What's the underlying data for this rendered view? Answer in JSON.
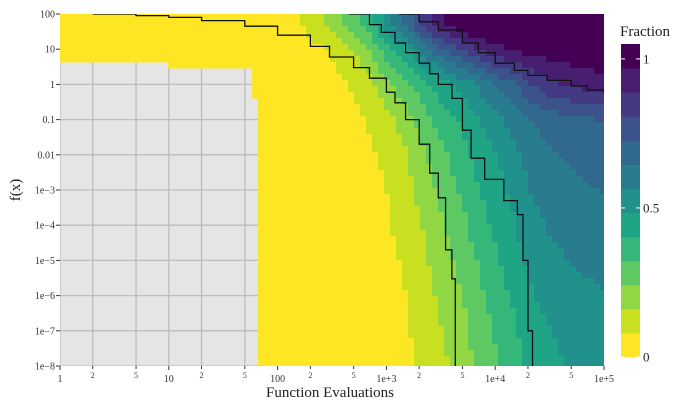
{
  "chart_data": {
    "type": "heatmap",
    "title": "",
    "xlabel": "Function Evaluations",
    "ylabel": "f(x)",
    "x_scale": "log10",
    "y_scale": "log10",
    "xlim": [
      1,
      100000
    ],
    "ylim": [
      1e-08,
      100
    ],
    "x_major_ticks": [
      {
        "value": 1,
        "label": "1"
      },
      {
        "value": 10,
        "label": "10"
      },
      {
        "value": 100,
        "label": "100"
      },
      {
        "value": 1000,
        "label": "1e+3"
      },
      {
        "value": 10000,
        "label": "1e+4"
      },
      {
        "value": 100000,
        "label": "1e+5"
      }
    ],
    "x_minor_ticks": [
      {
        "value": 2,
        "label": "2"
      },
      {
        "value": 5,
        "label": "5"
      },
      {
        "value": 20,
        "label": "2"
      },
      {
        "value": 50,
        "label": "5"
      },
      {
        "value": 200,
        "label": "2"
      },
      {
        "value": 500,
        "label": "5"
      },
      {
        "value": 2000,
        "label": "2"
      },
      {
        "value": 5000,
        "label": "5"
      },
      {
        "value": 20000,
        "label": "2"
      },
      {
        "value": 50000,
        "label": "5"
      }
    ],
    "y_ticks": [
      {
        "value": 100,
        "label": "100"
      },
      {
        "value": 10,
        "label": "10"
      },
      {
        "value": 1,
        "label": "1"
      },
      {
        "value": 0.1,
        "label": "0.1"
      },
      {
        "value": 0.01,
        "label": "0.01"
      },
      {
        "value": 0.001,
        "label": "1e−3"
      },
      {
        "value": 0.0001,
        "label": "1e−4"
      },
      {
        "value": 1e-05,
        "label": "1e−5"
      },
      {
        "value": 1e-06,
        "label": "1e−6"
      },
      {
        "value": 1e-07,
        "label": "1e−7"
      },
      {
        "value": 1e-08,
        "label": "1e−8"
      }
    ],
    "colorbar": {
      "title": "Fraction",
      "range": [
        0,
        1.05
      ],
      "ticks": [
        {
          "value": 0,
          "label": "0"
        },
        {
          "value": 0.5,
          "label": "0.5"
        },
        {
          "value": 1,
          "label": "1"
        }
      ],
      "levels": 10,
      "palette": "viridis-reversed",
      "colors": [
        "#fde725",
        "#c8e020",
        "#90d743",
        "#5ec962",
        "#35b779",
        "#20a486",
        "#21918c",
        "#287c8e",
        "#31688e",
        "#3b528b",
        "#443983",
        "#481f70",
        "#440154"
      ]
    },
    "uncovered_fill": "#e5e5e5",
    "grid": true,
    "uncovered_region_upper_boundary": [
      {
        "x": 1,
        "y": 5
      },
      {
        "x": 3,
        "y": 5
      },
      {
        "x": 3,
        "y": 4
      },
      {
        "x": 10,
        "y": 4
      },
      {
        "x": 10,
        "y": 3.2
      },
      {
        "x": 60,
        "y": 3.2
      },
      {
        "x": 60,
        "y": 0.35
      },
      {
        "x": 70,
        "y": 0.35
      },
      {
        "x": 70,
        "y": 1e-08
      }
    ],
    "fraction_grid": {
      "description": "Fraction of runs with best-so-far f(x) below the row threshold after the column budget of evaluations",
      "x": [
        70,
        100,
        150,
        200,
        300,
        500,
        700,
        1000,
        1500,
        2000,
        3000,
        5000,
        7000,
        10000,
        15000,
        20000,
        30000,
        50000,
        70000,
        100000
      ],
      "y": [
        50,
        10,
        1,
        0.1,
        0.01,
        0.001,
        0.0001,
        1e-05,
        1e-06,
        1e-07,
        1e-08
      ],
      "values": [
        [
          0.03,
          0.04,
          0.06,
          0.12,
          0.18,
          0.28,
          0.38,
          0.52,
          0.66,
          0.8,
          0.94,
          1.05,
          1.05,
          1.05,
          1.05,
          1.05,
          1.05,
          1.05,
          1.05,
          1.05
        ],
        [
          0.01,
          0.02,
          0.03,
          0.05,
          0.09,
          0.16,
          0.25,
          0.36,
          0.46,
          0.57,
          0.7,
          0.82,
          0.9,
          0.95,
          0.98,
          1.0,
          1.02,
          1.03,
          1.04,
          1.04
        ],
        [
          0.0,
          0.01,
          0.02,
          0.03,
          0.05,
          0.09,
          0.14,
          0.22,
          0.3,
          0.36,
          0.44,
          0.52,
          0.58,
          0.65,
          0.72,
          0.79,
          0.86,
          0.9,
          0.92,
          0.93
        ],
        [
          0.0,
          0.0,
          0.01,
          0.02,
          0.03,
          0.06,
          0.09,
          0.13,
          0.2,
          0.26,
          0.35,
          0.42,
          0.48,
          0.54,
          0.6,
          0.64,
          0.68,
          0.71,
          0.72,
          0.73
        ],
        [
          0.0,
          0.0,
          0.0,
          0.01,
          0.02,
          0.04,
          0.07,
          0.1,
          0.15,
          0.21,
          0.29,
          0.38,
          0.43,
          0.48,
          0.54,
          0.59,
          0.63,
          0.66,
          0.67,
          0.68
        ],
        [
          0.0,
          0.0,
          0.0,
          0.01,
          0.02,
          0.03,
          0.05,
          0.08,
          0.13,
          0.18,
          0.25,
          0.34,
          0.4,
          0.45,
          0.51,
          0.56,
          0.6,
          0.63,
          0.64,
          0.65
        ],
        [
          0.0,
          0.0,
          0.0,
          0.0,
          0.01,
          0.03,
          0.04,
          0.07,
          0.11,
          0.15,
          0.22,
          0.3,
          0.37,
          0.42,
          0.48,
          0.53,
          0.57,
          0.6,
          0.61,
          0.62
        ],
        [
          0.0,
          0.0,
          0.0,
          0.0,
          0.01,
          0.02,
          0.04,
          0.06,
          0.09,
          0.13,
          0.2,
          0.27,
          0.33,
          0.39,
          0.45,
          0.5,
          0.54,
          0.57,
          0.58,
          0.59
        ],
        [
          0.0,
          0.0,
          0.0,
          0.0,
          0.01,
          0.02,
          0.03,
          0.05,
          0.08,
          0.11,
          0.17,
          0.24,
          0.3,
          0.36,
          0.42,
          0.47,
          0.51,
          0.54,
          0.55,
          0.56
        ],
        [
          0.0,
          0.0,
          0.0,
          0.0,
          0.0,
          0.01,
          0.03,
          0.04,
          0.07,
          0.1,
          0.15,
          0.22,
          0.28,
          0.33,
          0.39,
          0.44,
          0.48,
          0.51,
          0.52,
          0.53
        ],
        [
          0.0,
          0.0,
          0.0,
          0.0,
          0.0,
          0.01,
          0.02,
          0.04,
          0.06,
          0.09,
          0.13,
          0.2,
          0.26,
          0.31,
          0.37,
          0.42,
          0.46,
          0.49,
          0.5,
          0.51
        ]
      ]
    },
    "contours": [
      {
        "level": 0.25,
        "points": [
          {
            "x": 2,
            "y": 100
          },
          {
            "x": 5,
            "y": 90
          },
          {
            "x": 10,
            "y": 80
          },
          {
            "x": 20,
            "y": 65
          },
          {
            "x": 50,
            "y": 45
          },
          {
            "x": 100,
            "y": 25
          },
          {
            "x": 200,
            "y": 12
          },
          {
            "x": 300,
            "y": 6
          },
          {
            "x": 500,
            "y": 3
          },
          {
            "x": 700,
            "y": 1.5
          },
          {
            "x": 1000,
            "y": 0.6
          },
          {
            "x": 1200,
            "y": 0.3
          },
          {
            "x": 1500,
            "y": 0.1
          },
          {
            "x": 2000,
            "y": 0.02
          },
          {
            "x": 2500,
            "y": 0.003
          },
          {
            "x": 3000,
            "y": 0.0006
          },
          {
            "x": 3500,
            "y": 2e-05
          },
          {
            "x": 4000,
            "y": 3e-06
          },
          {
            "x": 4300,
            "y": 1e-08
          }
        ]
      },
      {
        "level": 0.5,
        "points": [
          {
            "x": 450,
            "y": 100
          },
          {
            "x": 700,
            "y": 50
          },
          {
            "x": 900,
            "y": 30
          },
          {
            "x": 1200,
            "y": 15
          },
          {
            "x": 1500,
            "y": 8
          },
          {
            "x": 2000,
            "y": 4
          },
          {
            "x": 2500,
            "y": 2
          },
          {
            "x": 3000,
            "y": 1
          },
          {
            "x": 4000,
            "y": 0.4
          },
          {
            "x": 5000,
            "y": 0.05
          },
          {
            "x": 6000,
            "y": 0.008
          },
          {
            "x": 8000,
            "y": 0.002
          },
          {
            "x": 12000,
            "y": 0.0005
          },
          {
            "x": 16000,
            "y": 0.0002
          },
          {
            "x": 18000,
            "y": 1e-05
          },
          {
            "x": 20000,
            "y": 1e-07
          },
          {
            "x": 22000,
            "y": 1e-08
          }
        ]
      },
      {
        "level": 0.9,
        "points": [
          {
            "x": 1300,
            "y": 100
          },
          {
            "x": 2000,
            "y": 60
          },
          {
            "x": 3000,
            "y": 35
          },
          {
            "x": 5000,
            "y": 15
          },
          {
            "x": 7000,
            "y": 8
          },
          {
            "x": 10000,
            "y": 4
          },
          {
            "x": 15000,
            "y": 2.5
          },
          {
            "x": 20000,
            "y": 1.8
          },
          {
            "x": 30000,
            "y": 1.3
          },
          {
            "x": 50000,
            "y": 0.9
          },
          {
            "x": 70000,
            "y": 0.7
          },
          {
            "x": 100000,
            "y": 0.55
          }
        ]
      }
    ]
  }
}
